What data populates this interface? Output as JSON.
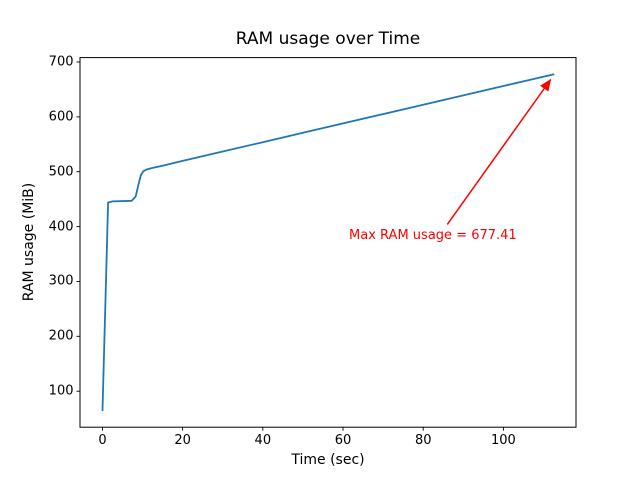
{
  "chart_data": {
    "type": "line",
    "title": "RAM usage over Time",
    "xlabel": "Time (sec)",
    "ylabel": "RAM usage (MiB)",
    "grid": false,
    "legend": "none",
    "background_color": "#ffffff",
    "axis_color": "#000000",
    "xlim": [
      -5.6,
      118.1
    ],
    "ylim": [
      34.4,
      708.0
    ],
    "xticks": [
      0,
      20,
      40,
      60,
      80,
      100
    ],
    "yticks": [
      100,
      200,
      300,
      400,
      500,
      600,
      700
    ],
    "series": [
      {
        "name": "RAM usage",
        "color": "#1f77b4",
        "line_width": 1.8,
        "x": [
          0,
          1.4,
          2.5,
          7.3,
          8.3,
          9.0,
          9.6,
          10.2,
          11.0,
          12.5,
          15,
          20,
          30,
          40,
          50,
          60,
          70,
          80,
          90,
          100,
          112.5
        ],
        "y": [
          65,
          444,
          446,
          447,
          455,
          477,
          494,
          501,
          504,
          507,
          511,
          519.8,
          536.8,
          553.9,
          570.9,
          588.0,
          605.0,
          622.0,
          639.1,
          656.2,
          677.41
        ]
      }
    ],
    "max_value": 677.41,
    "annotation": {
      "text": "Max RAM usage = 677.41",
      "color": "#ff0000",
      "text_xy": [
        61.5,
        398
      ],
      "arrow_from": [
        86,
        404
      ],
      "arrow_to": [
        111.8,
        668
      ]
    }
  }
}
